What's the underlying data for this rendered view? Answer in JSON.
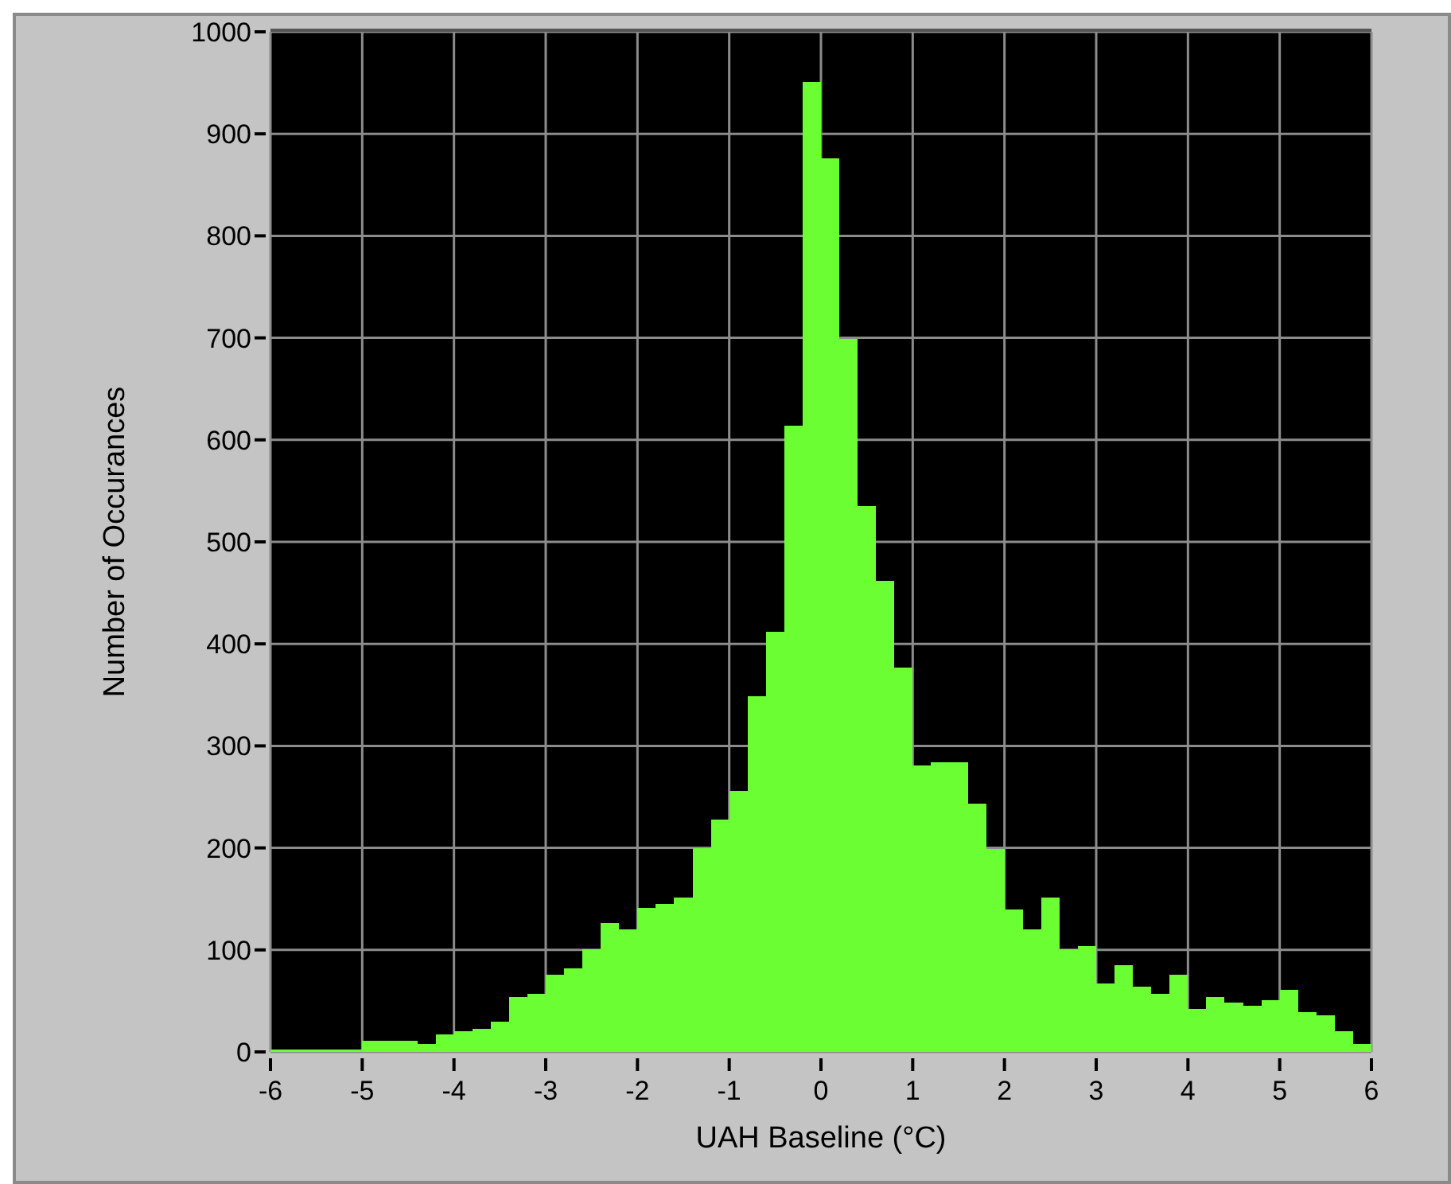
{
  "chart_data": {
    "type": "histogram",
    "xlabel": "UAH Baseline (°C)",
    "ylabel": "Number of Occurances",
    "color": "#6bff33",
    "bins": [
      -6,
      -5.8,
      -5.6,
      -5.4,
      -5.2,
      -5,
      -4.8,
      -4.6,
      -4.4,
      -4.2,
      -4,
      -3.8,
      -3.6,
      -3.4,
      -3.2,
      -3,
      -2.8,
      -2.6,
      -2.4,
      -2.2,
      -2,
      -1.8,
      -1.6,
      -1.4,
      -1.2,
      -1,
      -0.8,
      -0.6,
      -0.4,
      -0.2,
      0,
      0.2,
      0.4,
      0.6,
      0.8,
      1,
      1.2,
      1.4,
      1.6,
      1.8,
      2,
      2.2,
      2.4,
      2.6,
      2.8,
      3,
      3.2,
      3.4,
      3.6,
      3.8,
      4,
      4.2,
      4.4,
      4.6,
      4.8,
      5,
      5.2,
      5.4,
      5.6,
      5.8,
      6
    ],
    "values": [
      2,
      2,
      2,
      2,
      2,
      11,
      11,
      11,
      8,
      17,
      20,
      23,
      30,
      54,
      57,
      76,
      82,
      101,
      126,
      120,
      141,
      145,
      151,
      200,
      228,
      256,
      349,
      412,
      614,
      951,
      876,
      699,
      535,
      462,
      377,
      281,
      284,
      284,
      243,
      199,
      140,
      120,
      151,
      101,
      104,
      67,
      85,
      64,
      57,
      76,
      42,
      54,
      48,
      45,
      51,
      61,
      39,
      36,
      20,
      8
    ],
    "xlim": [
      -6,
      6
    ],
    "xticks": [
      -6,
      -5,
      -4,
      -3,
      -2,
      -1,
      0,
      1,
      2,
      3,
      4,
      5,
      6
    ],
    "ylim": [
      0,
      1000
    ],
    "yticks": [
      0,
      100,
      200,
      300,
      400,
      500,
      600,
      700,
      800,
      900,
      1000
    ],
    "grid": true
  }
}
